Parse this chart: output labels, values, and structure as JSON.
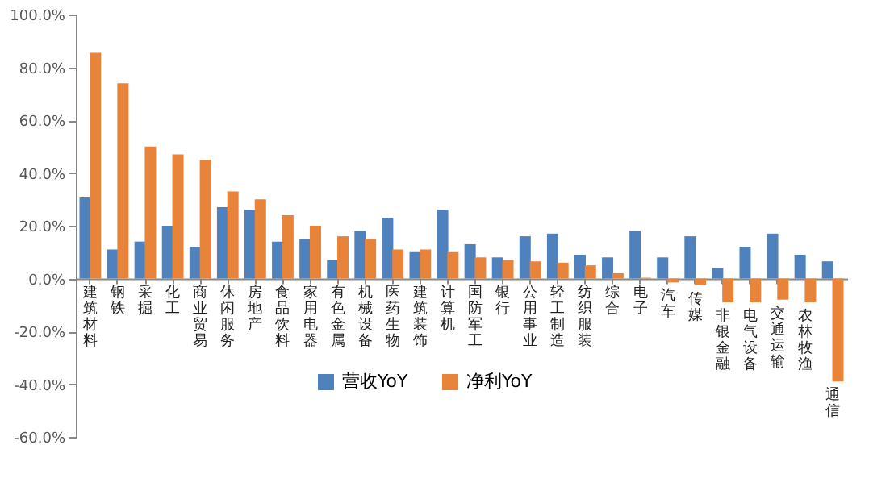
{
  "chart_data": {
    "type": "bar",
    "categories": [
      "建筑材料",
      "钢铁",
      "采掘",
      "化工",
      "商业贸易",
      "休闲服务",
      "房地产",
      "食品饮料",
      "家用电器",
      "有色金属",
      "机械设备",
      "医药生物",
      "建筑装饰",
      "计算机",
      "国防军工",
      "银行",
      "公用事业",
      "轻工制造",
      "纺织服装",
      "综合",
      "电子",
      "汽车",
      "传媒",
      "非银金融",
      "电气设备",
      "交通运输",
      "农林牧渔",
      "通信"
    ],
    "series": [
      {
        "name": "营收YoY",
        "color": "#4f81bd",
        "values": [
          30.7,
          11,
          14,
          20,
          12,
          27,
          26,
          14,
          15,
          7,
          18,
          23,
          10,
          26,
          13,
          8,
          16,
          17,
          9,
          8,
          18,
          8,
          16,
          4,
          12,
          17,
          9,
          6.5
        ]
      },
      {
        "name": "净利YoY",
        "color": "#e8833a",
        "values": [
          85.5,
          74,
          50,
          47,
          45,
          33,
          30,
          24,
          20,
          16,
          15,
          11,
          11,
          10,
          8,
          7,
          6.5,
          6,
          5,
          2,
          0.3,
          -1.5,
          -2.5,
          -9,
          -9,
          -8,
          -9,
          -39
        ]
      }
    ],
    "ylim": [
      -60,
      100
    ],
    "yticks": [
      {
        "value": -60,
        "label": "-60.0%"
      },
      {
        "value": -40,
        "label": "-40.0%"
      },
      {
        "value": -20,
        "label": "-20.0%"
      },
      {
        "value": 0,
        "label": "0.0%"
      },
      {
        "value": 20,
        "label": "20.0%"
      },
      {
        "value": 40,
        "label": "40.0%"
      },
      {
        "value": 60,
        "label": "60.0%"
      },
      {
        "value": 80,
        "label": "80.0%"
      },
      {
        "value": 100,
        "label": "100.0%"
      }
    ],
    "grid": false,
    "legend": "bottom"
  }
}
